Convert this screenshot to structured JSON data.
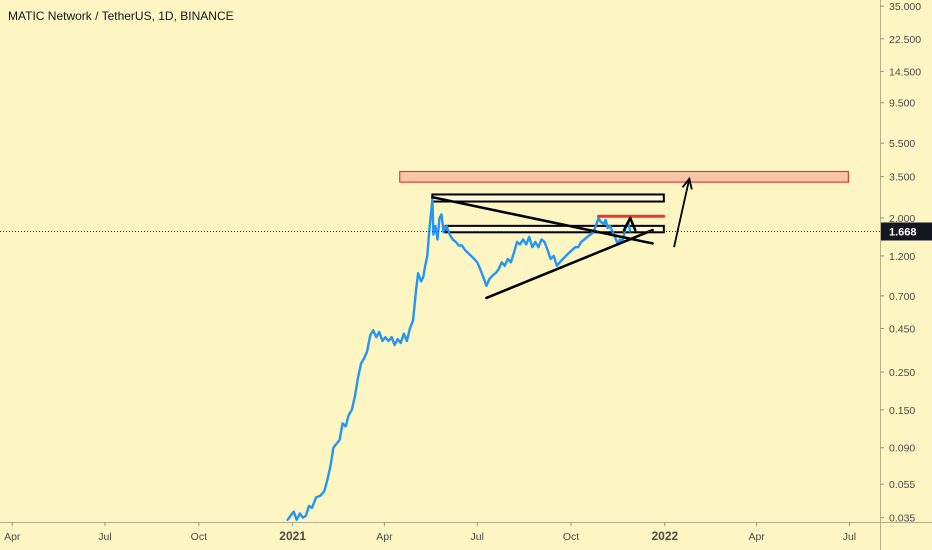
{
  "header": {
    "symbol_title": "MATIC Network / TetherUS, 1D, BINANCE"
  },
  "colors": {
    "background": "#fdf6c3",
    "price_line": "#2196f3",
    "drawing_black": "#000000",
    "resistance_red": "#e53935",
    "resistance_zone_fill": "#f6c6a8",
    "last_price_badge": "#131722",
    "axis_text": "#4a4a4a"
  },
  "chart_data": {
    "type": "line",
    "title": "MATIC Network / TetherUS, 1D, BINANCE",
    "xlabel": "",
    "ylabel": "",
    "y_scale": "log",
    "ylim": [
      0.033,
      38
    ],
    "xlim": [
      "2020-03-20",
      "2022-07-31"
    ],
    "grid": false,
    "last_price_label": "1.668",
    "x_tick_labels": [
      {
        "date": "2020-04-01",
        "label": "Apr"
      },
      {
        "date": "2020-07-01",
        "label": "Jul"
      },
      {
        "date": "2020-10-01",
        "label": "Oct"
      },
      {
        "date": "2021-01-01",
        "label": "2021"
      },
      {
        "date": "2021-04-01",
        "label": "Apr"
      },
      {
        "date": "2021-07-01",
        "label": "Jul"
      },
      {
        "date": "2021-10-01",
        "label": "Oct"
      },
      {
        "date": "2022-01-01",
        "label": "2022"
      },
      {
        "date": "2022-04-01",
        "label": "Apr"
      },
      {
        "date": "2022-07-01",
        "label": "Jul"
      }
    ],
    "y_tick_labels": [
      {
        "value": 35.0,
        "label": "35.000"
      },
      {
        "value": 22.5,
        "label": "22.500"
      },
      {
        "value": 14.5,
        "label": "14.500"
      },
      {
        "value": 9.5,
        "label": "9.500"
      },
      {
        "value": 5.5,
        "label": "5.500"
      },
      {
        "value": 3.5,
        "label": "3.500"
      },
      {
        "value": 2.0,
        "label": "2.000"
      },
      {
        "value": 1.2,
        "label": "1.200"
      },
      {
        "value": 0.7,
        "label": "0.700"
      },
      {
        "value": 0.45,
        "label": "0.450"
      },
      {
        "value": 0.25,
        "label": "0.250"
      },
      {
        "value": 0.15,
        "label": "0.150"
      },
      {
        "value": 0.09,
        "label": "0.090"
      },
      {
        "value": 0.055,
        "label": "0.055"
      },
      {
        "value": 0.035,
        "label": "0.035"
      }
    ],
    "series": [
      {
        "points": [
          [
            "2020-12-27",
            0.034
          ],
          [
            "2021-01-02",
            0.038
          ],
          [
            "2021-01-05",
            0.034
          ],
          [
            "2021-01-08",
            0.037
          ],
          [
            "2021-01-11",
            0.035
          ],
          [
            "2021-01-14",
            0.036
          ],
          [
            "2021-01-17",
            0.041
          ],
          [
            "2021-01-20",
            0.04
          ],
          [
            "2021-01-24",
            0.046
          ],
          [
            "2021-01-28",
            0.047
          ],
          [
            "2021-02-01",
            0.05
          ],
          [
            "2021-02-04",
            0.058
          ],
          [
            "2021-02-07",
            0.07
          ],
          [
            "2021-02-10",
            0.09
          ],
          [
            "2021-02-13",
            0.095
          ],
          [
            "2021-02-16",
            0.1
          ],
          [
            "2021-02-19",
            0.125
          ],
          [
            "2021-02-22",
            0.12
          ],
          [
            "2021-02-25",
            0.14
          ],
          [
            "2021-02-28",
            0.15
          ],
          [
            "2021-03-03",
            0.18
          ],
          [
            "2021-03-06",
            0.23
          ],
          [
            "2021-03-09",
            0.28
          ],
          [
            "2021-03-12",
            0.3
          ],
          [
            "2021-03-15",
            0.33
          ],
          [
            "2021-03-18",
            0.41
          ],
          [
            "2021-03-21",
            0.44
          ],
          [
            "2021-03-24",
            0.4
          ],
          [
            "2021-03-27",
            0.43
          ],
          [
            "2021-03-30",
            0.38
          ],
          [
            "2021-04-02",
            0.4
          ],
          [
            "2021-04-05",
            0.38
          ],
          [
            "2021-04-08",
            0.4
          ],
          [
            "2021-04-11",
            0.36
          ],
          [
            "2021-04-14",
            0.39
          ],
          [
            "2021-04-17",
            0.37
          ],
          [
            "2021-04-20",
            0.42
          ],
          [
            "2021-04-23",
            0.38
          ],
          [
            "2021-04-26",
            0.45
          ],
          [
            "2021-04-29",
            0.5
          ],
          [
            "2021-05-02",
            0.75
          ],
          [
            "2021-05-04",
            0.95
          ],
          [
            "2021-05-07",
            0.85
          ],
          [
            "2021-05-09",
            0.9
          ],
          [
            "2021-05-11",
            1.05
          ],
          [
            "2021-05-13",
            1.2
          ],
          [
            "2021-05-15",
            1.7
          ],
          [
            "2021-05-17",
            2.2
          ],
          [
            "2021-05-18",
            2.6
          ],
          [
            "2021-05-19",
            1.6
          ],
          [
            "2021-05-21",
            1.8
          ],
          [
            "2021-05-23",
            1.5
          ],
          [
            "2021-05-25",
            2.0
          ],
          [
            "2021-05-27",
            2.1
          ],
          [
            "2021-05-29",
            1.65
          ],
          [
            "2021-06-01",
            1.8
          ],
          [
            "2021-06-04",
            1.6
          ],
          [
            "2021-06-07",
            1.5
          ],
          [
            "2021-06-10",
            1.45
          ],
          [
            "2021-06-13",
            1.38
          ],
          [
            "2021-06-16",
            1.38
          ],
          [
            "2021-06-19",
            1.3
          ],
          [
            "2021-06-22",
            1.25
          ],
          [
            "2021-06-25",
            1.2
          ],
          [
            "2021-06-28",
            1.15
          ],
          [
            "2021-07-01",
            1.1
          ],
          [
            "2021-07-04",
            1.0
          ],
          [
            "2021-07-07",
            0.9
          ],
          [
            "2021-07-10",
            0.8
          ],
          [
            "2021-07-13",
            0.88
          ],
          [
            "2021-07-16",
            0.92
          ],
          [
            "2021-07-19",
            0.95
          ],
          [
            "2021-07-22",
            1.0
          ],
          [
            "2021-07-25",
            1.1
          ],
          [
            "2021-07-28",
            1.05
          ],
          [
            "2021-07-31",
            1.15
          ],
          [
            "2021-08-03",
            1.1
          ],
          [
            "2021-08-06",
            1.25
          ],
          [
            "2021-08-09",
            1.45
          ],
          [
            "2021-08-12",
            1.4
          ],
          [
            "2021-08-15",
            1.5
          ],
          [
            "2021-08-18",
            1.4
          ],
          [
            "2021-08-21",
            1.55
          ],
          [
            "2021-08-24",
            1.35
          ],
          [
            "2021-08-27",
            1.45
          ],
          [
            "2021-08-30",
            1.35
          ],
          [
            "2021-09-02",
            1.5
          ],
          [
            "2021-09-05",
            1.45
          ],
          [
            "2021-09-08",
            1.3
          ],
          [
            "2021-09-11",
            1.15
          ],
          [
            "2021-09-14",
            1.2
          ],
          [
            "2021-09-17",
            1.05
          ],
          [
            "2021-09-20",
            1.1
          ],
          [
            "2021-09-23",
            1.15
          ],
          [
            "2021-09-26",
            1.2
          ],
          [
            "2021-09-29",
            1.25
          ],
          [
            "2021-10-02",
            1.3
          ],
          [
            "2021-10-05",
            1.35
          ],
          [
            "2021-10-08",
            1.35
          ],
          [
            "2021-10-11",
            1.45
          ],
          [
            "2021-10-14",
            1.5
          ],
          [
            "2021-10-17",
            1.55
          ],
          [
            "2021-10-20",
            1.6
          ],
          [
            "2021-10-23",
            1.65
          ],
          [
            "2021-10-26",
            1.85
          ],
          [
            "2021-10-28",
            2.0
          ],
          [
            "2021-10-30",
            1.9
          ],
          [
            "2021-11-02",
            1.85
          ],
          [
            "2021-11-04",
            1.95
          ],
          [
            "2021-11-06",
            1.75
          ],
          [
            "2021-11-08",
            1.8
          ],
          [
            "2021-11-10",
            1.7
          ],
          [
            "2021-11-12",
            1.6
          ],
          [
            "2021-11-14",
            1.5
          ],
          [
            "2021-11-16",
            1.4
          ],
          [
            "2021-11-18",
            1.5
          ],
          [
            "2021-11-20",
            1.45
          ],
          [
            "2021-11-22",
            1.6
          ],
          [
            "2021-11-24",
            1.8
          ],
          [
            "2021-11-26",
            1.9
          ],
          [
            "2021-11-28",
            1.668
          ]
        ]
      }
    ],
    "annotations": [
      {
        "kind": "zone",
        "color": "red",
        "start": "2021-04-16",
        "end": "2022-06-30",
        "top": 3.75,
        "bottom": 3.25
      },
      {
        "kind": "box",
        "color": "black",
        "start": "2021-05-18",
        "end": "2021-12-31",
        "top": 2.75,
        "bottom": 2.5
      },
      {
        "kind": "box",
        "color": "black",
        "start": "2021-05-31",
        "end": "2021-12-31",
        "top": 1.8,
        "bottom": 1.65
      },
      {
        "kind": "line",
        "color": "black",
        "from": [
          "2021-05-18",
          2.65
        ],
        "to": [
          "2021-12-20",
          1.42
        ]
      },
      {
        "kind": "line",
        "color": "black",
        "from": [
          "2021-07-10",
          0.68
        ],
        "to": [
          "2021-12-20",
          1.7
        ]
      },
      {
        "kind": "line",
        "color": "red",
        "from": [
          "2021-10-28",
          2.05
        ],
        "to": [
          "2021-12-31",
          2.05
        ]
      },
      {
        "kind": "line",
        "color": "black",
        "from": [
          "2021-11-22",
          1.7
        ],
        "to": [
          "2021-11-28",
          2.0
        ]
      },
      {
        "kind": "line",
        "color": "black",
        "from": [
          "2021-11-28",
          2.0
        ],
        "to": [
          "2021-12-03",
          1.7
        ]
      },
      {
        "kind": "arrow",
        "color": "black",
        "from": [
          "2022-01-10",
          1.35
        ],
        "to": [
          "2022-01-25",
          3.4
        ]
      }
    ]
  }
}
